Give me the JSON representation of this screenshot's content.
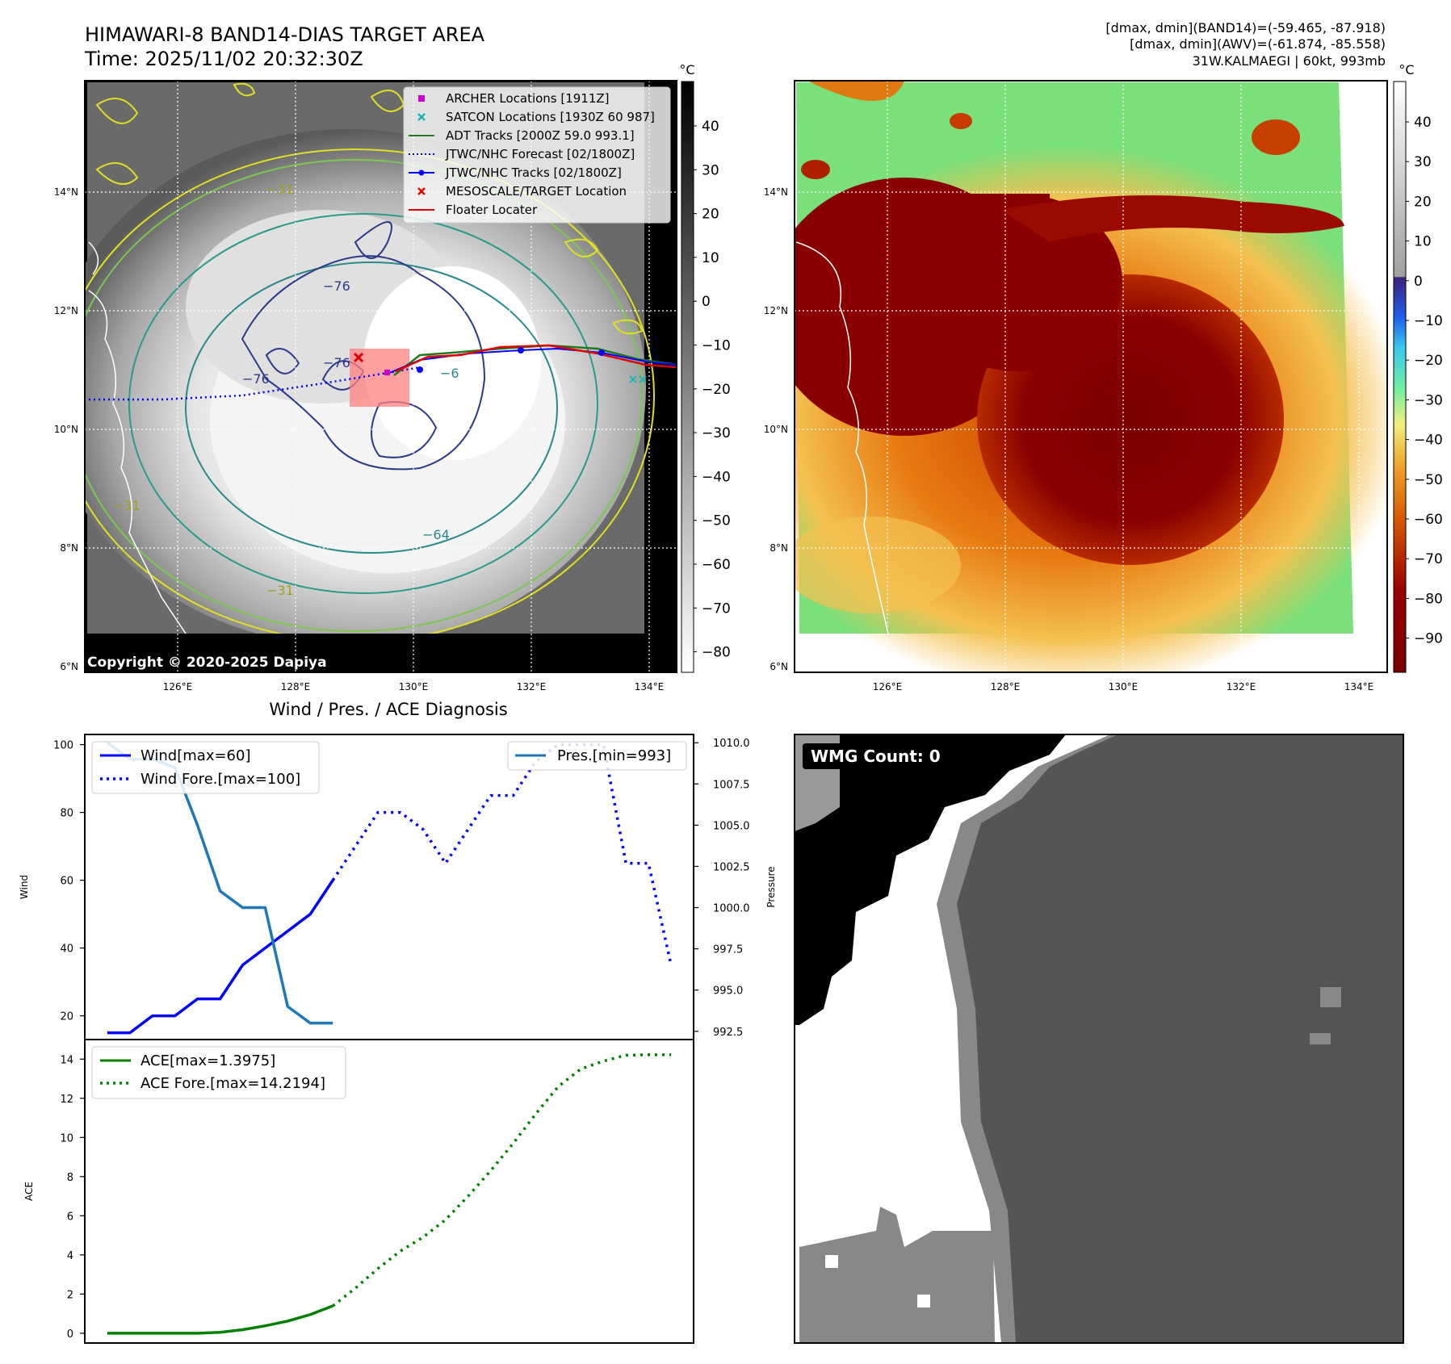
{
  "header": {
    "title": "HIMAWARI-8 BAND14-DIAS TARGET AREA",
    "time": "Time: 2025/11/02 20:32:30Z",
    "stats_band14": "[dmax, dmin](BAND14)=(-59.465, -87.918)",
    "stats_awv": "[dmax, dmin](AWV)=(-61.874, -85.558)",
    "storm": "31W.KALMAEGI | 60kt, 993mb"
  },
  "map_ir": {
    "copyright": "Copyright © 2020-2025 Dapiya",
    "lat_ticks": [
      "6°N",
      "8°N",
      "10°N",
      "12°N",
      "14°N"
    ],
    "lon_ticks": [
      "126°E",
      "128°E",
      "130°E",
      "132°E",
      "134°E"
    ],
    "colorbar_unit": "°C",
    "colorbar_ticks": [
      "40",
      "30",
      "20",
      "10",
      "0",
      "−10",
      "−20",
      "−30",
      "−40",
      "−50",
      "−60",
      "−70",
      "−80"
    ],
    "contour_labels": [
      "−76",
      "−76",
      "−76",
      "−64",
      "−31",
      "−31",
      "−31",
      "−6"
    ],
    "legend": [
      {
        "label": "ARCHER Locations [1911Z]",
        "color": "#c800c8",
        "symbol": "square"
      },
      {
        "label": "SATCON Locations [1930Z 60 987]",
        "color": "#20b2b2",
        "symbol": "x"
      },
      {
        "label": "ADT Tracks [2000Z 59.0 993.1]",
        "color": "#1e7a1e",
        "symbol": "line"
      },
      {
        "label": "JTWC/NHC Forecast [02/1800Z]",
        "color": "#0000ff",
        "symbol": "dotted"
      },
      {
        "label": "JTWC/NHC Tracks [02/1800Z]",
        "color": "#0000ff",
        "symbol": "line-dot"
      },
      {
        "label": "MESOSCALE/TARGET Location",
        "color": "#e00000",
        "symbol": "x"
      },
      {
        "label": "Floater Locater",
        "color": "#e00000",
        "symbol": "line"
      }
    ]
  },
  "map_color": {
    "lat_ticks": [
      "6°N",
      "8°N",
      "10°N",
      "12°N",
      "14°N"
    ],
    "lon_ticks": [
      "126°E",
      "128°E",
      "130°E",
      "132°E",
      "134°E"
    ],
    "colorbar_unit": "°C",
    "colorbar_ticks": [
      "40",
      "30",
      "20",
      "10",
      "0",
      "−10",
      "−20",
      "−30",
      "−40",
      "−50",
      "−60",
      "−70",
      "−80",
      "−90"
    ]
  },
  "wmg": {
    "label": "WMG Count: 0",
    "ylabel": "Pressure"
  },
  "colors": {
    "wind": "#0000ff",
    "pressure": "#1f77b4",
    "ace": "#008000"
  },
  "chart_data": [
    {
      "type": "line",
      "title": "Wind / Pres. / ACE Diagnosis",
      "ylabel": "Wind",
      "y2label": "Pressure",
      "ylim": [
        13,
        103
      ],
      "y2lim": [
        992.0,
        1010.5
      ],
      "xlim": [
        -1,
        26
      ],
      "yticks": [
        "100",
        "80",
        "60",
        "40",
        "20"
      ],
      "y2ticks": [
        "1010.0",
        "1007.5",
        "1005.0",
        "1002.5",
        "1000.0",
        "997.5",
        "995.0",
        "992.5"
      ],
      "series": [
        {
          "name": "Wind[max=60]",
          "axis": "left",
          "style": "solid",
          "x": [
            0,
            1,
            2,
            3,
            4,
            5,
            6,
            7,
            8,
            9,
            10
          ],
          "values": [
            15,
            15,
            20,
            20,
            25,
            25,
            35,
            40,
            45,
            50,
            60
          ]
        },
        {
          "name": "Wind Fore.[max=100]",
          "axis": "left",
          "style": "dotted",
          "x": [
            10,
            11,
            12,
            13,
            14,
            15,
            16,
            17,
            18,
            19,
            20,
            21,
            22,
            23,
            24,
            25
          ],
          "values": [
            60,
            70,
            80,
            80,
            75,
            65,
            75,
            85,
            85,
            95,
            100,
            100,
            100,
            65,
            65,
            35
          ]
        },
        {
          "name": "Pres.[min=993]",
          "axis": "right",
          "style": "solid",
          "x": [
            0,
            1,
            2,
            3,
            4,
            5,
            6,
            7,
            8,
            9,
            10
          ],
          "values": [
            1010,
            1009,
            1009,
            1008.5,
            1005,
            1001,
            1000,
            1000,
            994,
            993,
            993
          ]
        }
      ]
    },
    {
      "type": "line",
      "ylabel": "ACE",
      "ylim": [
        -0.5,
        15
      ],
      "xlim": [
        -1,
        26
      ],
      "yticks": [
        "0",
        "2",
        "4",
        "6",
        "8",
        "10",
        "12",
        "14"
      ],
      "series": [
        {
          "name": "ACE[max=1.3975]",
          "style": "solid",
          "x": [
            0,
            1,
            2,
            3,
            4,
            5,
            6,
            7,
            8,
            9,
            10
          ],
          "values": [
            0,
            0,
            0,
            0,
            0,
            0.05,
            0.18,
            0.38,
            0.62,
            0.95,
            1.3975
          ]
        },
        {
          "name": "ACE Fore.[max=14.2194]",
          "style": "dotted",
          "x": [
            10,
            11,
            12,
            13,
            14,
            15,
            16,
            17,
            18,
            19,
            20,
            21,
            22,
            23,
            24,
            25
          ],
          "values": [
            1.3975,
            2.3,
            3.3,
            4.2,
            4.9,
            5.8,
            7.0,
            8.3,
            9.7,
            11.2,
            12.6,
            13.5,
            13.9,
            14.2,
            14.2194,
            14.2194
          ]
        }
      ]
    }
  ]
}
